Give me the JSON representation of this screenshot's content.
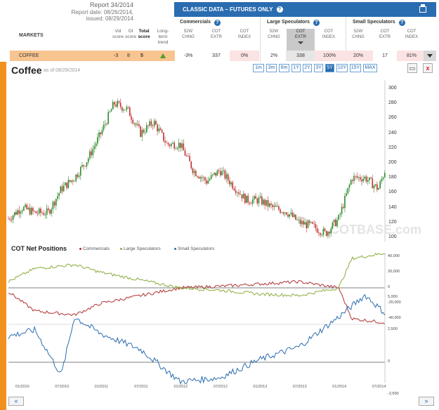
{
  "report": {
    "title": "Report 34/2014",
    "date": "Report date: 08/26/2014,",
    "issued": "issued: 08/29/2014"
  },
  "table": {
    "markets_label": "MARKETS",
    "score_headers": [
      "Vol score",
      "OI score",
      "Total score",
      "Long-term trend"
    ],
    "classic_title": "CLASSIC DATA – FUTURES ONLY",
    "help_glyph": "?",
    "groups": [
      "Commercials",
      "Large Speculators",
      "Small Speculators"
    ],
    "col_headers": [
      [
        "52W",
        "CHNG"
      ],
      [
        "COT",
        "EXTR"
      ],
      [
        "COT",
        "INDEX"
      ],
      [
        "52W",
        "CHNG"
      ],
      [
        "COT",
        "EXTR"
      ],
      [
        "COT",
        "INDEX"
      ],
      [
        "52W",
        "CHNG"
      ],
      [
        "COT",
        "EXTR"
      ],
      [
        "COT",
        "INDEX"
      ]
    ]
  },
  "row": {
    "market": "COFFEE",
    "vol": "-3",
    "oi": "8",
    "total": "5",
    "values": [
      "-3%",
      "337",
      "0%",
      "2%",
      "338",
      "100%",
      "20%",
      "17",
      "81%"
    ]
  },
  "chart": {
    "title": "Coffee",
    "asof": "as of 08/29/2014",
    "ranges": [
      "1m",
      "3m",
      "6m",
      "1Y",
      "2Y",
      "3Y",
      "5Y",
      "10Y",
      "15Y",
      "MAX"
    ],
    "active_range": "5Y",
    "close_glyph": "x",
    "watermark": "COTBASE.com",
    "nav_prev": "«",
    "nav_next": "»"
  },
  "chart_data": [
    {
      "type": "candlestick",
      "title": "Coffee",
      "y_ticks": [
        "300",
        "280",
        "260",
        "240",
        "220",
        "200",
        "180",
        "160",
        "140",
        "120",
        "100"
      ],
      "ylim": [
        100,
        300
      ],
      "x_ticks": [
        "01/2010",
        "07/2010",
        "01/2011",
        "07/2011",
        "01/2012",
        "07/2012",
        "01/2013",
        "07/2013",
        "01/2014",
        "07/2014"
      ],
      "x_date_range": [
        "2009-11",
        "2014-08"
      ],
      "approx_close_path": [
        [
          "2009-11",
          125
        ],
        [
          "2010-01",
          140
        ],
        [
          "2010-03",
          133
        ],
        [
          "2010-05",
          133
        ],
        [
          "2010-07",
          165
        ],
        [
          "2010-09",
          180
        ],
        [
          "2010-11",
          205
        ],
        [
          "2011-01",
          240
        ],
        [
          "2011-03",
          280
        ],
        [
          "2011-05",
          272
        ],
        [
          "2011-07",
          240
        ],
        [
          "2011-09",
          255
        ],
        [
          "2011-11",
          225
        ],
        [
          "2012-01",
          225
        ],
        [
          "2012-03",
          190
        ],
        [
          "2012-05",
          175
        ],
        [
          "2012-07",
          190
        ],
        [
          "2012-09",
          170
        ],
        [
          "2012-11",
          150
        ],
        [
          "2013-01",
          150
        ],
        [
          "2013-03",
          140
        ],
        [
          "2013-05",
          135
        ],
        [
          "2013-07",
          120
        ],
        [
          "2013-09",
          115
        ],
        [
          "2013-11",
          105
        ],
        [
          "2014-01",
          125
        ],
        [
          "2014-03",
          180
        ],
        [
          "2014-05",
          180
        ],
        [
          "2014-07",
          165
        ],
        [
          "2014-08",
          190
        ]
      ]
    },
    {
      "type": "line",
      "title": "COT Net Positions",
      "series": [
        {
          "name": "Commercials",
          "color": "#b03030",
          "points": [
            [
              "2009-11",
              -5000
            ],
            [
              "2010-03",
              -30000
            ],
            [
              "2010-09",
              -35000
            ],
            [
              "2011-01",
              -20000
            ],
            [
              "2011-07",
              -10000
            ],
            [
              "2012-01",
              0
            ],
            [
              "2012-07",
              2000
            ],
            [
              "2013-01",
              5000
            ],
            [
              "2013-07",
              8000
            ],
            [
              "2014-01",
              0
            ],
            [
              "2014-03",
              -40000
            ],
            [
              "2014-08",
              -45000
            ]
          ]
        },
        {
          "name": "Large Speculators",
          "color": "#8aaa3a",
          "points": [
            [
              "2009-11",
              8000
            ],
            [
              "2010-03",
              25000
            ],
            [
              "2010-09",
              30000
            ],
            [
              "2011-01",
              20000
            ],
            [
              "2011-07",
              10000
            ],
            [
              "2012-01",
              0
            ],
            [
              "2012-07",
              -3000
            ],
            [
              "2013-01",
              -8000
            ],
            [
              "2013-07",
              -10000
            ],
            [
              "2014-01",
              0
            ],
            [
              "2014-03",
              38000
            ],
            [
              "2014-08",
              45000
            ]
          ]
        },
        {
          "name": "Small Speculators",
          "color": "#2a6cb0",
          "points": [
            [
              "2009-11",
              2000
            ],
            [
              "2010-03",
              2500
            ],
            [
              "2010-07",
              -1000
            ],
            [
              "2010-09",
              3500
            ],
            [
              "2011-01",
              2200
            ],
            [
              "2011-07",
              1000
            ],
            [
              "2012-01",
              -1500
            ],
            [
              "2012-07",
              -1200
            ],
            [
              "2013-01",
              200
            ],
            [
              "2013-07",
              1200
            ],
            [
              "2014-01",
              3500
            ],
            [
              "2014-05",
              5200
            ],
            [
              "2014-08",
              3800
            ]
          ]
        }
      ],
      "y_ticks_large": [
        "40,000",
        "20,000",
        "0",
        "-20,000",
        "-40,000"
      ],
      "y_ticks_small": [
        "5,000",
        "2,500",
        "0",
        "-2,500"
      ]
    }
  ],
  "legend": [
    "Commercials",
    "Large Speculators",
    "Small Speculators"
  ]
}
